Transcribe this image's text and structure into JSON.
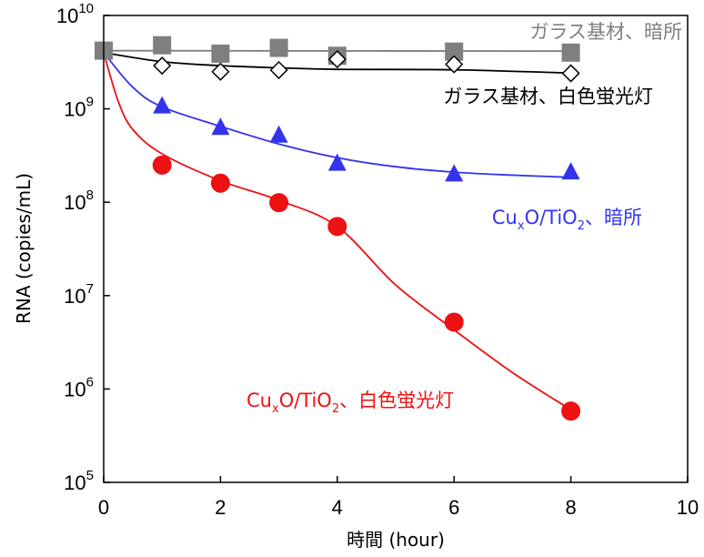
{
  "chart_data": {
    "type": "scatter",
    "xlabel": "時間 (hour)",
    "ylabel": "RNA (copies/mL)",
    "xlim": [
      0,
      10
    ],
    "ylim": [
      100000,
      10000000000
    ],
    "yscale": "log",
    "grid": false,
    "x_ticks": [
      "0",
      "2",
      "4",
      "6",
      "8",
      "10"
    ],
    "y_ticks": [
      {
        "base": "10",
        "exp": "5"
      },
      {
        "base": "10",
        "exp": "6"
      },
      {
        "base": "10",
        "exp": "7"
      },
      {
        "base": "10",
        "exp": "8"
      },
      {
        "base": "10",
        "exp": "9"
      },
      {
        "base": "10",
        "exp": "10"
      }
    ],
    "series": [
      {
        "label_parts": {
          "main": "ガラス基材、暗所"
        },
        "color": "#7f7f7f",
        "marker": "square",
        "x": [
          0,
          1,
          2,
          3,
          4,
          6,
          8
        ],
        "y": [
          4200000000,
          4800000000,
          3900000000,
          4500000000,
          3700000000,
          4100000000,
          4000000000
        ],
        "fit": [
          [
            0,
            4200000000
          ],
          [
            8,
            4150000000
          ]
        ]
      },
      {
        "label_parts": {
          "main": "ガラス基材、白色蛍光灯"
        },
        "color": "#000000",
        "marker": "diamond-open",
        "x": [
          1,
          2,
          3,
          4,
          6,
          8
        ],
        "y": [
          2900000000,
          2500000000,
          2600000000,
          3400000000,
          3000000000,
          2400000000
        ],
        "fit": [
          [
            0,
            4000000000
          ],
          [
            1,
            3200000000
          ],
          [
            2,
            2900000000
          ],
          [
            3,
            2750000000
          ],
          [
            4,
            2650000000
          ],
          [
            6,
            2620000000
          ],
          [
            8,
            2420000000
          ]
        ]
      },
      {
        "label_parts": {
          "pre": "Cu",
          "sub1": "x",
          "mid": "O/TiO",
          "sub2": "2",
          "post": "、暗所"
        },
        "color": "#3333ee",
        "marker": "triangle",
        "x": [
          1,
          2,
          3,
          4,
          6,
          8
        ],
        "y": [
          1070000000,
          630000000,
          520000000,
          260000000,
          200000000,
          210000000
        ],
        "fit": [
          [
            0,
            4000000000
          ],
          [
            0.5,
            1700000000
          ],
          [
            1,
            1050000000
          ],
          [
            2,
            650000000
          ],
          [
            3,
            420000000
          ],
          [
            4,
            300000000
          ],
          [
            5,
            240000000
          ],
          [
            6,
            210000000
          ],
          [
            7,
            195000000
          ],
          [
            8,
            185000000
          ]
        ]
      },
      {
        "label_parts": {
          "pre": "Cu",
          "sub1": "x",
          "mid": "O/TiO",
          "sub2": "2",
          "post": "、白色蛍光灯"
        },
        "color": "#ee1111",
        "marker": "circle",
        "x": [
          1,
          2,
          3,
          4,
          6,
          8
        ],
        "y": [
          250000000,
          160000000,
          99000000,
          55000000,
          5200000,
          580000
        ],
        "fit": [
          [
            0,
            4000000000
          ],
          [
            0.25,
            1200000000
          ],
          [
            0.5,
            600000000
          ],
          [
            1,
            330000000
          ],
          [
            2,
            170000000
          ],
          [
            3,
            105000000
          ],
          [
            4,
            55000000
          ],
          [
            5,
            13000000
          ],
          [
            6,
            4300000
          ],
          [
            7,
            1500000
          ],
          [
            8,
            600000
          ]
        ]
      }
    ]
  }
}
